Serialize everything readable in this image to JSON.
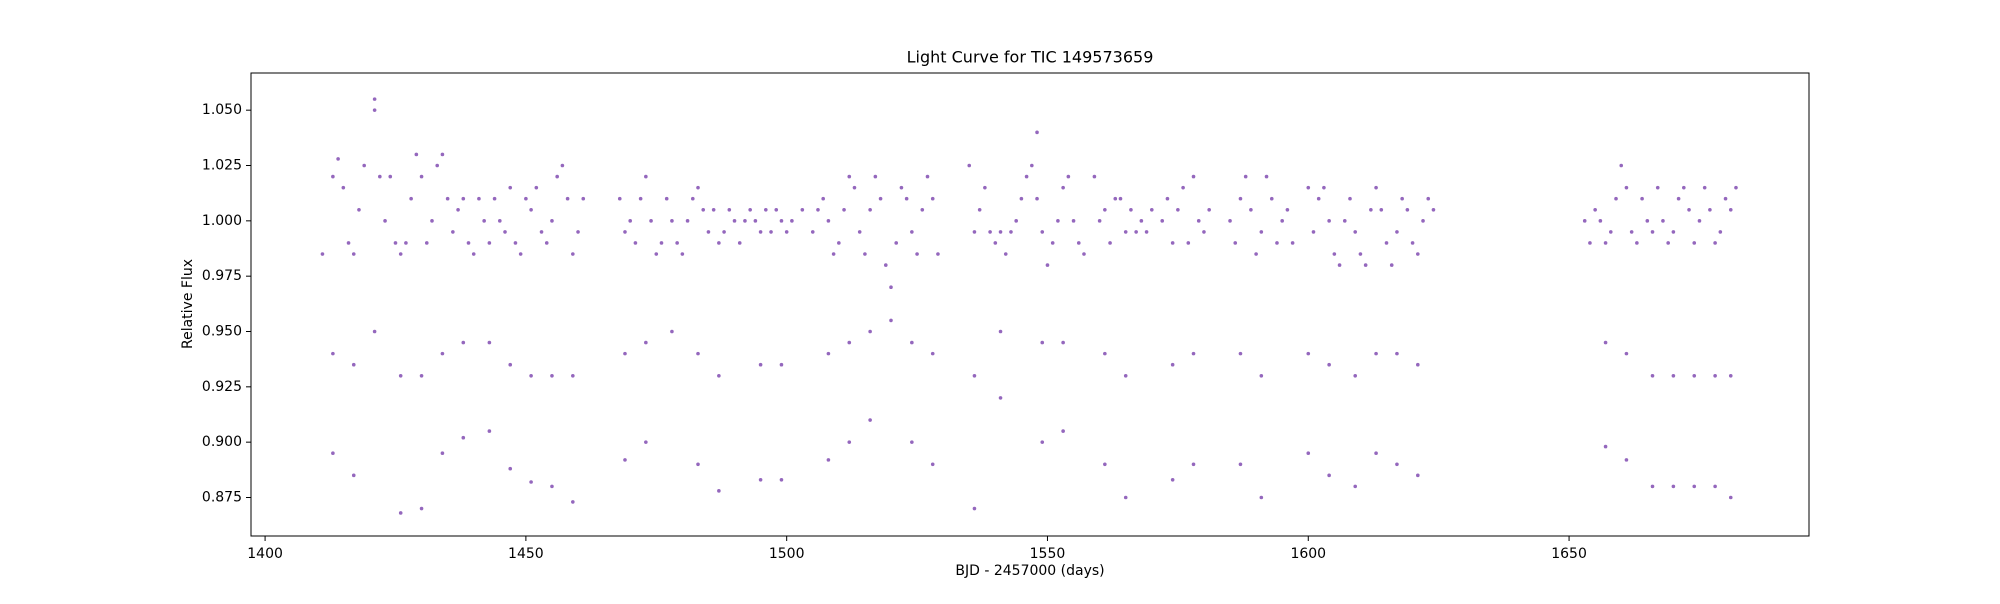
{
  "chart_data": {
    "type": "scatter",
    "title": "Light Curve for TIC 149573659",
    "x_label": "BJD - 2457000 (days)",
    "y_label": "Relative Flux",
    "color": "#9467bd",
    "xlim": [
      1397.3,
      1696
    ],
    "ylim": [
      0.8576,
      1.0668
    ],
    "xticks": [
      1400,
      1450,
      1500,
      1550,
      1600,
      1650
    ],
    "yticks": [
      0.875,
      {
        "value": 0.9,
        "label": "0.900"
      },
      0.925,
      {
        "value": 0.95,
        "label": "0.950"
      },
      0.975,
      {
        "value": 1.0,
        "label": "1.000"
      },
      1.025,
      {
        "value": 1.05,
        "label": "1.050"
      }
    ],
    "x": [
      1411,
      1413,
      1414,
      1415,
      1416,
      1417,
      1418,
      1419,
      1421,
      1422,
      1423,
      1424,
      1425,
      1426,
      1427,
      1428,
      1429,
      1430,
      1431,
      1432,
      1433,
      1434,
      1435,
      1436,
      1437,
      1438,
      1439,
      1440,
      1441,
      1442,
      1443,
      1444,
      1445,
      1446,
      1447,
      1448,
      1449,
      1450,
      1451,
      1452,
      1453,
      1454,
      1455,
      1456,
      1457,
      1458,
      1459,
      1460,
      1461,
      1468,
      1469,
      1470,
      1471,
      1472,
      1473,
      1474,
      1475,
      1476,
      1477,
      1478,
      1479,
      1480,
      1481,
      1482,
      1483,
      1484,
      1485,
      1486,
      1487,
      1488,
      1489,
      1490,
      1491,
      1492,
      1493,
      1494,
      1495,
      1496,
      1497,
      1498,
      1499,
      1500,
      1501,
      1503,
      1505,
      1506,
      1507,
      1508,
      1509,
      1510,
      1511,
      1512,
      1513,
      1514,
      1515,
      1516,
      1517,
      1518,
      1519,
      1520,
      1521,
      1522,
      1523,
      1524,
      1525,
      1526,
      1527,
      1528,
      1529,
      1535,
      1536,
      1537,
      1538,
      1539,
      1540,
      1541,
      1542,
      1543,
      1544,
      1545,
      1546,
      1547,
      1548,
      1549,
      1550,
      1551,
      1552,
      1553,
      1554,
      1555,
      1556,
      1557,
      1559,
      1560,
      1561,
      1562,
      1563,
      1564,
      1565,
      1566,
      1567,
      1568,
      1569,
      1570,
      1572,
      1573,
      1574,
      1575,
      1576,
      1577,
      1578,
      1579,
      1580,
      1581,
      1585,
      1586,
      1587,
      1588,
      1589,
      1590,
      1591,
      1592,
      1593,
      1594,
      1595,
      1596,
      1597,
      1600,
      1601,
      1602,
      1603,
      1604,
      1605,
      1606,
      1607,
      1608,
      1609,
      1610,
      1611,
      1612,
      1613,
      1614,
      1615,
      1616,
      1617,
      1618,
      1619,
      1620,
      1621,
      1622,
      1623,
      1624,
      1653,
      1654,
      1655,
      1656,
      1657,
      1658,
      1659,
      1660,
      1661,
      1662,
      1663,
      1664,
      1665,
      1666,
      1667,
      1668,
      1669,
      1670,
      1671,
      1672,
      1673,
      1674,
      1675,
      1676,
      1677,
      1678,
      1679,
      1680,
      1681,
      1682,
      1413,
      1413,
      1417,
      1417,
      1421,
      1426,
      1426,
      1430,
      1430,
      1434,
      1434,
      1438,
      1438,
      1443,
      1443,
      1447,
      1447,
      1451,
      1451,
      1455,
      1455,
      1459,
      1459,
      1469,
      1469,
      1473,
      1473,
      1478,
      1483,
      1483,
      1487,
      1487,
      1495,
      1495,
      1499,
      1499,
      1508,
      1508,
      1512,
      1512,
      1516,
      1516,
      1520,
      1524,
      1524,
      1528,
      1528,
      1536,
      1536,
      1541,
      1541,
      1549,
      1549,
      1553,
      1553,
      1561,
      1561,
      1565,
      1565,
      1574,
      1574,
      1578,
      1578,
      1587,
      1587,
      1591,
      1591,
      1600,
      1600,
      1604,
      1604,
      1609,
      1609,
      1613,
      1613,
      1617,
      1617,
      1621,
      1621,
      1657,
      1657,
      1661,
      1661,
      1666,
      1666,
      1670,
      1670,
      1674,
      1674,
      1678,
      1678,
      1681,
      1681,
      1548,
      1421
    ],
    "values": [
      0.985,
      1.02,
      1.028,
      1.015,
      0.99,
      0.985,
      1.005,
      1.025,
      1.05,
      1.02,
      1.0,
      1.02,
      0.99,
      0.985,
      0.99,
      1.01,
      1.03,
      1.02,
      0.99,
      1.0,
      1.025,
      1.03,
      1.01,
      0.995,
      1.005,
      1.01,
      0.99,
      0.985,
      1.01,
      1.0,
      0.99,
      1.01,
      1.0,
      0.995,
      1.015,
      0.99,
      0.985,
      1.01,
      1.005,
      1.015,
      0.995,
      0.99,
      1.0,
      1.02,
      1.025,
      1.01,
      0.985,
      0.995,
      1.01,
      1.01,
      0.995,
      1.0,
      0.99,
      1.01,
      1.02,
      1.0,
      0.985,
      0.99,
      1.01,
      1.0,
      0.99,
      0.985,
      1.0,
      1.01,
      1.015,
      1.005,
      0.995,
      1.005,
      0.99,
      0.995,
      1.005,
      1.0,
      0.99,
      1.0,
      1.005,
      1.0,
      0.995,
      1.005,
      0.995,
      1.005,
      1.0,
      0.995,
      1.0,
      1.005,
      0.995,
      1.005,
      1.01,
      1.0,
      0.985,
      0.99,
      1.005,
      1.02,
      1.015,
      0.995,
      0.985,
      1.005,
      1.02,
      1.01,
      0.98,
      0.97,
      0.99,
      1.015,
      1.01,
      0.995,
      0.985,
      1.005,
      1.02,
      1.01,
      0.985,
      1.025,
      0.995,
      1.005,
      1.015,
      0.995,
      0.99,
      0.995,
      0.985,
      0.995,
      1.0,
      1.01,
      1.02,
      1.025,
      1.01,
      0.995,
      0.98,
      0.99,
      1.0,
      1.015,
      1.02,
      1.0,
      0.99,
      0.985,
      1.02,
      1.0,
      1.005,
      0.99,
      1.01,
      1.01,
      0.995,
      1.005,
      0.995,
      1.0,
      0.995,
      1.005,
      1.0,
      1.01,
      0.99,
      1.005,
      1.015,
      0.99,
      1.02,
      1.0,
      0.995,
      1.005,
      1.0,
      0.99,
      1.01,
      1.02,
      1.005,
      0.985,
      0.995,
      1.02,
      1.01,
      0.99,
      1.0,
      1.005,
      0.99,
      1.015,
      0.995,
      1.01,
      1.015,
      1.0,
      0.985,
      0.98,
      1.0,
      1.01,
      0.995,
      0.985,
      0.98,
      1.005,
      1.015,
      1.005,
      0.99,
      0.98,
      0.995,
      1.01,
      1.005,
      0.99,
      0.985,
      1.0,
      1.01,
      1.005,
      1.0,
      0.99,
      1.005,
      1.0,
      0.99,
      0.995,
      1.01,
      1.025,
      1.015,
      0.995,
      0.99,
      1.01,
      1.0,
      0.995,
      1.015,
      1.0,
      0.99,
      0.995,
      1.01,
      1.015,
      1.005,
      0.99,
      1.0,
      1.015,
      1.005,
      0.99,
      0.995,
      1.01,
      1.005,
      1.015,
      0.895,
      0.94,
      0.885,
      0.935,
      0.95,
      0.868,
      0.93,
      0.87,
      0.93,
      0.895,
      0.94,
      0.902,
      0.945,
      0.905,
      0.945,
      0.888,
      0.935,
      0.882,
      0.93,
      0.88,
      0.93,
      0.873,
      0.93,
      0.892,
      0.94,
      0.9,
      0.945,
      0.95,
      0.89,
      0.94,
      0.878,
      0.93,
      0.883,
      0.935,
      0.883,
      0.935,
      0.892,
      0.94,
      0.9,
      0.945,
      0.91,
      0.95,
      0.955,
      0.9,
      0.945,
      0.89,
      0.94,
      0.87,
      0.93,
      0.92,
      0.95,
      0.9,
      0.945,
      0.905,
      0.945,
      0.89,
      0.94,
      0.875,
      0.93,
      0.883,
      0.935,
      0.89,
      0.94,
      0.89,
      0.94,
      0.875,
      0.93,
      0.895,
      0.94,
      0.885,
      0.935,
      0.88,
      0.93,
      0.895,
      0.94,
      0.89,
      0.94,
      0.885,
      0.935,
      0.898,
      0.945,
      0.892,
      0.94,
      0.88,
      0.93,
      0.88,
      0.93,
      0.88,
      0.93,
      0.88,
      0.93,
      0.875,
      0.93,
      1.04,
      1.055
    ]
  }
}
